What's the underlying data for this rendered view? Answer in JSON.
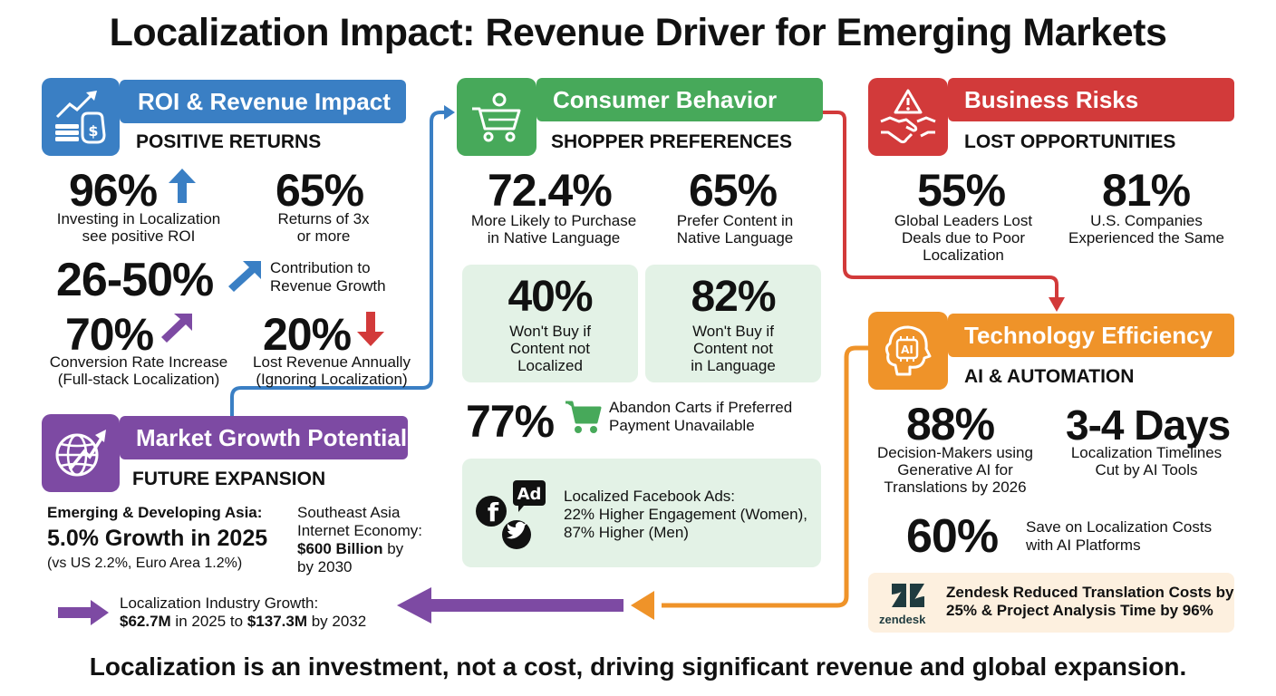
{
  "title": "Localization Impact: Revenue Driver for Emerging Markets",
  "footer": "Localization is an investment, not a cost, driving significant revenue and global expansion.",
  "colors": {
    "blue": "#3a7fc4",
    "green": "#47a95a",
    "red": "#d23a3a",
    "orange": "#ef9329",
    "purple": "#7d4aa3"
  },
  "roi": {
    "icon": "money-growth-icon",
    "header": "ROI & Revenue Impact",
    "subheader": "POSITIVE RETURNS",
    "stat1": {
      "value": "96%",
      "caption1": "Investing in Localization",
      "caption2": "see positive ROI"
    },
    "stat2": {
      "value": "65%",
      "caption1": "Returns of 3x",
      "caption2": "or more"
    },
    "stat3": {
      "value": "26-50%",
      "caption1": "Contribution to",
      "caption2": "Revenue Growth"
    },
    "stat4": {
      "value": "70%",
      "caption1": "Conversion Rate Increase",
      "caption2": "(Full-stack Localization)"
    },
    "stat5": {
      "value": "20%",
      "caption1": "Lost Revenue Annually",
      "caption2": "(Ignoring Localization)"
    }
  },
  "consumer": {
    "icon": "shopping-cart-person-icon",
    "header": "Consumer Behavior",
    "subheader": "SHOPPER PREFERENCES",
    "stat1": {
      "value": "72.4%",
      "caption1": "More Likely to Purchase",
      "caption2": "in Native Language"
    },
    "stat2": {
      "value": "65%",
      "caption1": "Prefer Content in",
      "caption2": "Native Language"
    },
    "card1": {
      "value": "40%",
      "line1": "Won't Buy if",
      "line2": "Content not",
      "line3": "Localized"
    },
    "card2": {
      "value": "82%",
      "line1": "Won't Buy if",
      "line2": "Content not",
      "line3": "in Language"
    },
    "stat3": {
      "value": "77%",
      "caption1": "Abandon Carts if Preferred",
      "caption2": "Payment Unavailable"
    },
    "ads": {
      "badge": "Ad",
      "line1": "Localized Facebook Ads:",
      "line2": "22% Higher Engagement (Women),",
      "line3": "87% Higher (Men)"
    }
  },
  "risks": {
    "icon": "handshake-warning-icon",
    "header": "Business Risks",
    "subheader": "LOST OPPORTUNITIES",
    "stat1": {
      "value": "55%",
      "caption1": "Global Leaders Lost",
      "caption2": "Deals due to Poor",
      "caption3": "Localization"
    },
    "stat2": {
      "value": "81%",
      "caption1": "U.S. Companies",
      "caption2": "Experienced the Same"
    }
  },
  "tech": {
    "icon": "ai-brain-icon",
    "icon_text": "AI",
    "header": "Technology Efficiency",
    "subheader": "AI & AUTOMATION",
    "stat1": {
      "value": "88%",
      "caption1": "Decision-Makers using",
      "caption2": "Generative AI for",
      "caption3": "Translations by 2026"
    },
    "stat2": {
      "value": "3-4 Days",
      "caption1": "Localization Timelines",
      "caption2": "Cut by AI Tools"
    },
    "stat3": {
      "value": "60%",
      "caption1": "Save on Localization Costs",
      "caption2": "with AI Platforms"
    },
    "zendesk": {
      "logo_text": "zendesk",
      "line1": "Zendesk Reduced Translation Costs by",
      "line2": "25% & Project Analysis Time by 96%"
    }
  },
  "market": {
    "icon": "globe-growth-icon",
    "header": "Market Growth Potential",
    "subheader": "FUTURE EXPANSION",
    "asia": {
      "line1": "Emerging & Developing Asia:",
      "line2": "5.0% Growth in 2025",
      "line3": "(vs US 2.2%, Euro Area 1.2%)"
    },
    "sea": {
      "line1": "Southeast Asia",
      "line2": "Internet Economy:",
      "line3a": "$600 Billion",
      "line3b": " by",
      "line4": "by 2030"
    },
    "industry": {
      "line1": "Localization Industry Growth:",
      "line2a": "$62.7M",
      "line2b": " in 2025 to ",
      "line2c": "$137.3M",
      "line2d": " by 2032"
    }
  }
}
